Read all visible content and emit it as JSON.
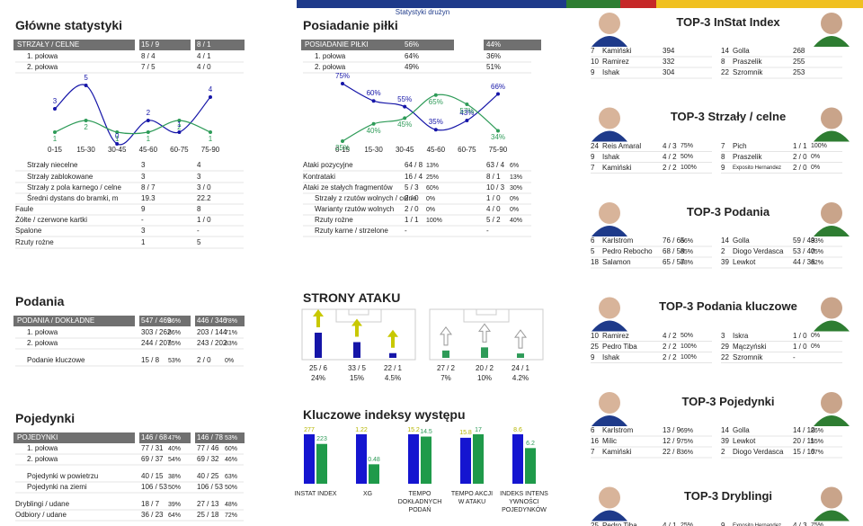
{
  "banner": {
    "subtitle": "Statystyki drużyn"
  },
  "main_stats": {
    "title": "Główne statystyki",
    "header": [
      "STRZAŁY / CELNE",
      "15 / 9",
      "8 / 1"
    ],
    "rows": [
      [
        "1. połowa",
        "8 / 4",
        "4 / 1"
      ],
      [
        "2. połowa",
        "7 / 5",
        "4 / 0"
      ]
    ],
    "more_rows": [
      [
        "Strzały niecelne",
        "3",
        "4"
      ],
      [
        "Strzały zablokowane",
        "3",
        "3"
      ],
      [
        "Strzały z pola karnego / celne",
        "8 / 7",
        "3 / 0"
      ],
      [
        "Średni dystans do bramki, m",
        "19.3",
        "22.2"
      ],
      [
        "Faule",
        "9",
        "8"
      ],
      [
        "Żółte / czerwone kartki",
        "-",
        "1 / 0"
      ],
      [
        "Spalone",
        "3",
        "-"
      ],
      [
        "Rzuty rożne",
        "1",
        "5"
      ]
    ]
  },
  "possession": {
    "title": "Posiadanie piłki",
    "header": [
      "POSIADANIE PIŁKI",
      "56%",
      "44%"
    ],
    "rows": [
      [
        "1. połowa",
        "64%",
        "36%"
      ],
      [
        "2. połowa",
        "49%",
        "51%"
      ]
    ],
    "more_rows": [
      [
        "Ataki pozycyjne",
        "64 / 8",
        "13%",
        "63 / 4",
        "6%"
      ],
      [
        "Kontrataki",
        "16 / 4",
        "25%",
        "8 / 1",
        "13%"
      ],
      [
        "Ataki ze stałych fragmentów",
        "5 / 3",
        "60%",
        "10 / 3",
        "30%"
      ],
      [
        "Strzały z rzutów wolnych / celne",
        "2 / 0",
        "0%",
        "1 / 0",
        "0%"
      ],
      [
        "Warianty rzutów wolnych",
        "2 / 0",
        "0%",
        "4 / 0",
        "0%"
      ],
      [
        "Rzuty rożne",
        "1 / 1",
        "100%",
        "5 / 2",
        "40%"
      ],
      [
        "Rzuty karne / strzelone",
        "-",
        "-"
      ]
    ]
  },
  "passes": {
    "title": "Podania",
    "header": [
      "PODANIA / DOKŁADNE",
      "547 / 469",
      "86%",
      "446 / 346",
      "78%"
    ],
    "rows": [
      [
        "1. połowa",
        "303 / 262",
        "86%",
        "203 / 144",
        "71%"
      ],
      [
        "2. połowa",
        "244 / 207",
        "85%",
        "243 / 202",
        "83%"
      ],
      [
        "Podanie kluczowe",
        "15 / 8",
        "53%",
        "2 / 0",
        "0%"
      ]
    ]
  },
  "duels": {
    "title": "Pojedynki",
    "header": [
      "POJEDYNKI",
      "146 / 68",
      "47%",
      "146 / 78",
      "53%"
    ],
    "rows": [
      [
        "1. połowa",
        "77 / 31",
        "40%",
        "77 / 46",
        "60%"
      ],
      [
        "2. połowa",
        "69 / 37",
        "54%",
        "69 / 32",
        "46%"
      ],
      [
        "Pojedynki w powietrzu",
        "40 / 15",
        "38%",
        "40 / 25",
        "63%"
      ],
      [
        "Pojedynki na ziemi",
        "106 / 53",
        "50%",
        "106 / 53",
        "50%"
      ],
      [
        "Dryblingi / udane",
        "18 / 7",
        "39%",
        "27 / 13",
        "48%"
      ],
      [
        "Odbiory / udane",
        "36 / 23",
        "64%",
        "25 / 18",
        "72%"
      ]
    ]
  },
  "chart_data": [
    {
      "type": "line",
      "categories": [
        "0-15",
        "15-30",
        "30-45",
        "45-60",
        "60-75",
        "75-90"
      ],
      "series": [
        {
          "color": "#1515a8",
          "values": [
            3,
            5,
            0,
            2,
            1,
            4
          ]
        },
        {
          "color": "#2e9b58",
          "values": [
            1,
            2,
            1,
            1,
            2,
            1
          ]
        }
      ]
    },
    {
      "type": "line",
      "categories": [
        "0-15",
        "15-30",
        "30-45",
        "45-60",
        "60-75",
        "75-90"
      ],
      "series": [
        {
          "color": "#1515a8",
          "values": [
            75,
            60,
            55,
            35,
            43,
            66
          ],
          "value_labels": [
            "75%",
            "60%",
            "55%",
            "35%",
            "43%",
            "66%"
          ]
        },
        {
          "color": "#2e9b58",
          "values": [
            25,
            40,
            45,
            65,
            57,
            34
          ],
          "value_labels": [
            "25%",
            "40%",
            "45%",
            "65%",
            "57%",
            "34%"
          ]
        }
      ]
    },
    {
      "type": "pitch",
      "title": "STRONY ATAKU",
      "teams": [
        {
          "color": "#1515a8",
          "counts": [
            "25 / 6",
            "33 / 5",
            "22 / 1"
          ],
          "values": [
            24,
            15,
            4.5
          ],
          "value_labels": [
            "24%",
            "15%",
            "4.5%"
          ]
        },
        {
          "color": "#2e9b58",
          "counts": [
            "27 / 2",
            "20 / 2",
            "24 / 1"
          ],
          "values": [
            7,
            10,
            4.2
          ],
          "value_labels": [
            "7%",
            "10%",
            "4.2%"
          ]
        }
      ]
    },
    {
      "type": "bar",
      "title": "Kluczowe indeksy występu",
      "categories": [
        "INSTAT INDEX",
        "XG",
        "TEMPO DOKŁADNYCH PODAŃ",
        "TEMPO AKCJI W ATAKU",
        "INDEKS INTENS YWNOŚCI POJEDYNKÓW"
      ],
      "series": [
        {
          "color": "#1515d0",
          "values": [
            277,
            1.22,
            15.2,
            15.8,
            8.6
          ]
        },
        {
          "color": "#1f9a4a",
          "values": [
            223,
            0.48,
            14.5,
            17,
            6.2
          ]
        }
      ]
    }
  ],
  "top3": [
    {
      "title": "TOP-3 InStat Index",
      "left": [
        [
          "7",
          "Kamiński",
          "394"
        ],
        [
          "10",
          "Ramirez",
          "332"
        ],
        [
          "9",
          "Ishak",
          "304"
        ]
      ],
      "right": [
        [
          "14",
          "Golla",
          "268"
        ],
        [
          "8",
          "Praszelik",
          "255"
        ],
        [
          "22",
          "Szromnik",
          "253"
        ]
      ]
    },
    {
      "title": "TOP-3 Strzały / celne",
      "left": [
        [
          "24",
          "Reis Amaral",
          "4 / 3",
          "75%"
        ],
        [
          "9",
          "Ishak",
          "4 / 2",
          "50%"
        ],
        [
          "7",
          "Kamiński",
          "2 / 2",
          "100%"
        ]
      ],
      "right": [
        [
          "7",
          "Pich",
          "1 / 1",
          "100%"
        ],
        [
          "8",
          "Praszelik",
          "2 / 0",
          "0%"
        ],
        [
          "9",
          "Exposito Hernandez",
          "2 / 0",
          "0%"
        ]
      ]
    },
    {
      "title": "TOP-3 Podania",
      "left": [
        [
          "6",
          "Karlstrom",
          "76 / 65",
          "86%"
        ],
        [
          "5",
          "Pedro Rebocho",
          "68 / 58",
          "85%"
        ],
        [
          "18",
          "Salamon",
          "65 / 57",
          "88%"
        ]
      ],
      "right": [
        [
          "14",
          "Golla",
          "59 / 49",
          "83%"
        ],
        [
          "2",
          "Diogo Verdasca",
          "53 / 40",
          "75%"
        ],
        [
          "39",
          "Lewkot",
          "44 / 36",
          "82%"
        ]
      ]
    },
    {
      "title": "TOP-3 Podania kluczowe",
      "left": [
        [
          "10",
          "Ramirez",
          "4 / 2",
          "50%"
        ],
        [
          "25",
          "Pedro Tiba",
          "2 / 2",
          "100%"
        ],
        [
          "9",
          "Ishak",
          "2 / 2",
          "100%"
        ]
      ],
      "right": [
        [
          "3",
          "Iskra",
          "1 / 0",
          "0%"
        ],
        [
          "29",
          "Mączyński",
          "1 / 0",
          "0%"
        ],
        [
          "22",
          "Szromnik",
          "-"
        ]
      ]
    },
    {
      "title": "TOP-3 Pojedynki",
      "left": [
        [
          "6",
          "Karlstrom",
          "13 / 9",
          "69%"
        ],
        [
          "16",
          "Milic",
          "12 / 9",
          "75%"
        ],
        [
          "7",
          "Kamiński",
          "22 / 8",
          "36%"
        ]
      ],
      "right": [
        [
          "14",
          "Golla",
          "14 / 12",
          "86%"
        ],
        [
          "39",
          "Lewkot",
          "20 / 11",
          "55%"
        ],
        [
          "2",
          "Diogo Verdasca",
          "15 / 10",
          "67%"
        ]
      ]
    },
    {
      "title": "TOP-3 Dryblingi",
      "left": [
        [
          "25",
          "Pedro Tiba",
          "4 / 1",
          "25%"
        ]
      ],
      "right": [
        [
          "9",
          "Exposito Hernandez",
          "4 / 3",
          "75%"
        ]
      ]
    }
  ]
}
